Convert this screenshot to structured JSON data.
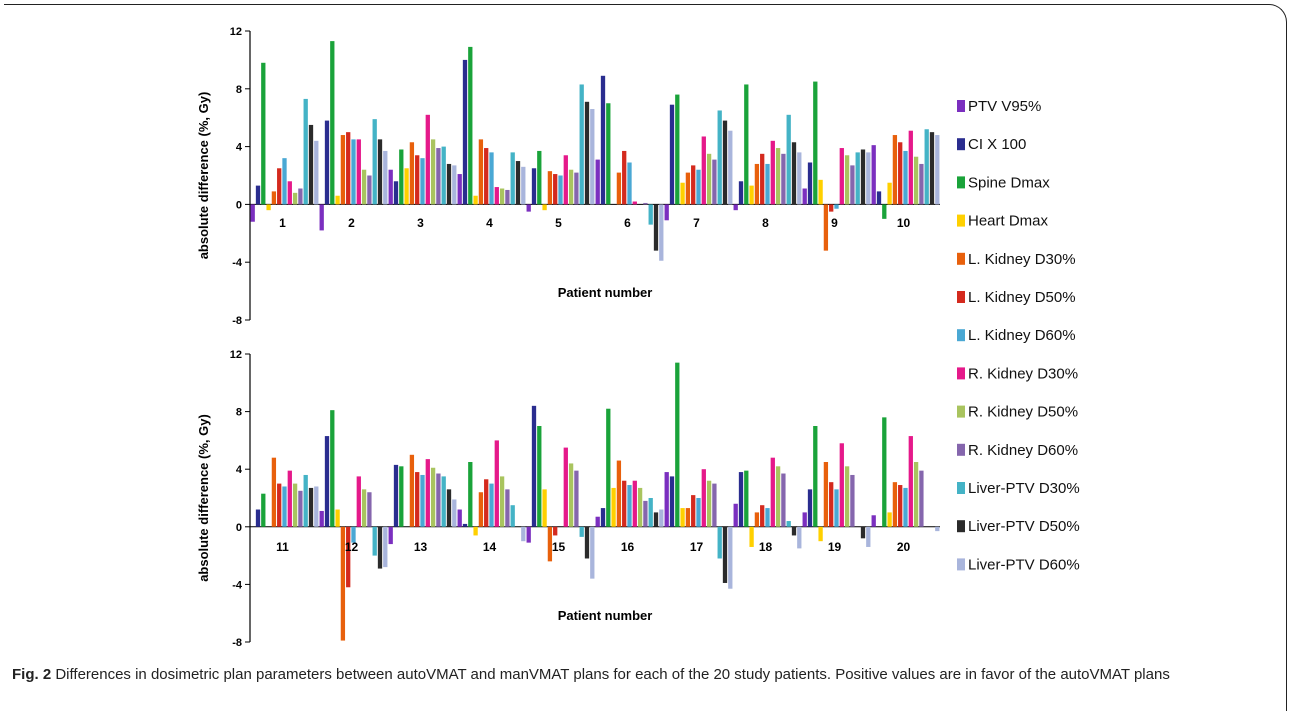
{
  "caption": {
    "label": "Fig. 2",
    "text": " Differences in dosimetric plan parameters between autoVMAT and manVMAT plans for each of the 20 study patients. Positive values are in favor of the autoVMAT plans"
  },
  "legend": [
    {
      "name": "PTV V95%",
      "color": "#7b2fbf"
    },
    {
      "name": "CI X 100",
      "color": "#2a2d8f"
    },
    {
      "name": "Spine Dmax",
      "color": "#1aa33a"
    },
    {
      "name": "Heart Dmax",
      "color": "#ffd000"
    },
    {
      "name": "L. Kidney D30%",
      "color": "#e8600c"
    },
    {
      "name": "L. Kidney D50%",
      "color": "#d42a1e"
    },
    {
      "name": "L. Kidney D60%",
      "color": "#4aa8d4"
    },
    {
      "name": "R. Kidney D30%",
      "color": "#e5198a"
    },
    {
      "name": "R. Kidney D50%",
      "color": "#a9c45f"
    },
    {
      "name": "R. Kidney D60%",
      "color": "#8566ad"
    },
    {
      "name": "Liver-PTV D30%",
      "color": "#44b3c6"
    },
    {
      "name": "Liver-PTV D50%",
      "color": "#2b2b2b"
    },
    {
      "name": "Liver-PTV D60%",
      "color": "#a9b5dc"
    }
  ],
  "chart_data": [
    {
      "type": "bar",
      "xlabel": "Patient number",
      "ylabel": "absolute difference (%, Gy)",
      "ylim": [
        -8,
        12
      ],
      "yticks": [
        "12",
        "8",
        "4",
        "0",
        "-4",
        "-8"
      ],
      "categories": [
        "1",
        "2",
        "3",
        "4",
        "5",
        "6",
        "7",
        "8",
        "9",
        "10"
      ],
      "series": [
        {
          "name": "PTV V95%",
          "values": [
            -1.2,
            -1.8,
            2.4,
            2.1,
            -0.5,
            3.1,
            -1.1,
            -0.4,
            1.1,
            4.1
          ]
        },
        {
          "name": "CI X 100",
          "values": [
            1.3,
            5.8,
            1.6,
            10.0,
            2.5,
            8.9,
            6.9,
            1.6,
            2.9,
            0.9
          ]
        },
        {
          "name": "Spine Dmax",
          "values": [
            9.8,
            11.3,
            3.8,
            10.9,
            3.7,
            7.0,
            7.6,
            8.3,
            8.5,
            -1.0
          ]
        },
        {
          "name": "Heart Dmax",
          "values": [
            -0.4,
            0.6,
            2.5,
            0.6,
            -0.4,
            0.0,
            1.5,
            1.3,
            1.7,
            1.5
          ]
        },
        {
          "name": "L. Kidney D30%",
          "values": [
            0.9,
            4.8,
            4.3,
            4.5,
            2.3,
            2.2,
            2.2,
            2.8,
            -3.2,
            4.8
          ]
        },
        {
          "name": "L. Kidney D50%",
          "values": [
            2.5,
            5.0,
            3.4,
            3.9,
            2.1,
            3.7,
            2.7,
            3.5,
            -0.5,
            4.3
          ]
        },
        {
          "name": "L. Kidney D60%",
          "values": [
            3.2,
            4.5,
            3.2,
            3.6,
            2.0,
            2.9,
            2.4,
            2.8,
            -0.3,
            3.7
          ]
        },
        {
          "name": "R. Kidney D30%",
          "values": [
            1.6,
            4.5,
            6.2,
            1.2,
            3.4,
            0.2,
            4.7,
            4.4,
            3.9,
            5.1
          ]
        },
        {
          "name": "R. Kidney D50%",
          "values": [
            0.8,
            2.4,
            4.5,
            1.1,
            2.4,
            0.0,
            3.5,
            3.9,
            3.4,
            3.3
          ]
        },
        {
          "name": "R. Kidney D60%",
          "values": [
            1.1,
            2.0,
            3.9,
            1.0,
            2.2,
            0.1,
            3.1,
            3.5,
            2.7,
            2.8
          ]
        },
        {
          "name": "Liver-PTV D30%",
          "values": [
            7.3,
            5.9,
            4.0,
            3.6,
            8.3,
            -1.4,
            6.5,
            6.2,
            3.6,
            5.2
          ]
        },
        {
          "name": "Liver-PTV D50%",
          "values": [
            5.5,
            4.5,
            2.8,
            3.0,
            7.1,
            -3.2,
            5.8,
            4.3,
            3.8,
            5.0
          ]
        },
        {
          "name": "Liver-PTV D60%",
          "values": [
            4.4,
            3.7,
            2.7,
            2.6,
            6.6,
            -3.9,
            5.1,
            3.6,
            3.6,
            4.8
          ]
        }
      ]
    },
    {
      "type": "bar",
      "xlabel": "Patient number",
      "ylabel": "absolute difference (%, Gy)",
      "ylim": [
        -8,
        12
      ],
      "yticks": [
        "12",
        "8",
        "4",
        "0",
        "-4",
        "-8"
      ],
      "categories": [
        "11",
        "12",
        "13",
        "14",
        "15",
        "16",
        "17",
        "18",
        "19",
        "20"
      ],
      "series": [
        {
          "name": "PTV V95%",
          "values": [
            0.0,
            1.1,
            -1.2,
            1.2,
            -1.1,
            0.7,
            3.8,
            1.6,
            1.0,
            0.8
          ]
        },
        {
          "name": "CI X 100",
          "values": [
            1.2,
            6.3,
            4.3,
            0.2,
            8.4,
            1.3,
            3.5,
            3.8,
            2.6,
            0.0
          ]
        },
        {
          "name": "Spine Dmax",
          "values": [
            2.3,
            8.1,
            4.2,
            4.5,
            7.0,
            8.2,
            11.4,
            3.9,
            7.0,
            7.6
          ]
        },
        {
          "name": "Heart Dmax",
          "values": [
            0.0,
            1.2,
            0.0,
            -0.6,
            2.6,
            2.7,
            1.3,
            -1.4,
            -1.0,
            1.0
          ]
        },
        {
          "name": "L. Kidney D30%",
          "values": [
            4.8,
            -7.9,
            5.0,
            2.4,
            -2.4,
            4.6,
            1.3,
            1.0,
            4.5,
            3.1
          ]
        },
        {
          "name": "L. Kidney D50%",
          "values": [
            3.0,
            -4.2,
            3.8,
            3.3,
            -0.6,
            3.2,
            2.2,
            1.5,
            3.1,
            2.9
          ]
        },
        {
          "name": "L. Kidney D60%",
          "values": [
            2.8,
            -1.1,
            3.6,
            3.0,
            0.0,
            2.9,
            2.0,
            1.3,
            2.6,
            2.7
          ]
        },
        {
          "name": "R. Kidney D30%",
          "values": [
            3.9,
            3.5,
            4.7,
            6.0,
            5.5,
            3.2,
            4.0,
            4.8,
            5.8,
            6.3
          ]
        },
        {
          "name": "R. Kidney D50%",
          "values": [
            3.0,
            2.6,
            4.1,
            3.5,
            4.4,
            2.7,
            3.2,
            4.2,
            4.2,
            4.5
          ]
        },
        {
          "name": "R. Kidney D60%",
          "values": [
            2.5,
            2.4,
            3.7,
            2.6,
            3.9,
            1.8,
            3.0,
            3.7,
            3.6,
            3.9
          ]
        },
        {
          "name": "Liver-PTV D30%",
          "values": [
            3.6,
            -2.0,
            3.5,
            1.5,
            -0.7,
            2.0,
            -2.2,
            0.4,
            0.0,
            0.0
          ]
        },
        {
          "name": "Liver-PTV D50%",
          "values": [
            2.7,
            -2.9,
            2.6,
            0.0,
            -2.2,
            1.0,
            -3.9,
            -0.6,
            -0.8,
            0.0
          ]
        },
        {
          "name": "Liver-PTV D60%",
          "values": [
            2.8,
            -2.8,
            1.9,
            -1.0,
            -3.6,
            1.2,
            -4.3,
            -1.5,
            -1.4,
            -0.3
          ]
        }
      ]
    }
  ]
}
